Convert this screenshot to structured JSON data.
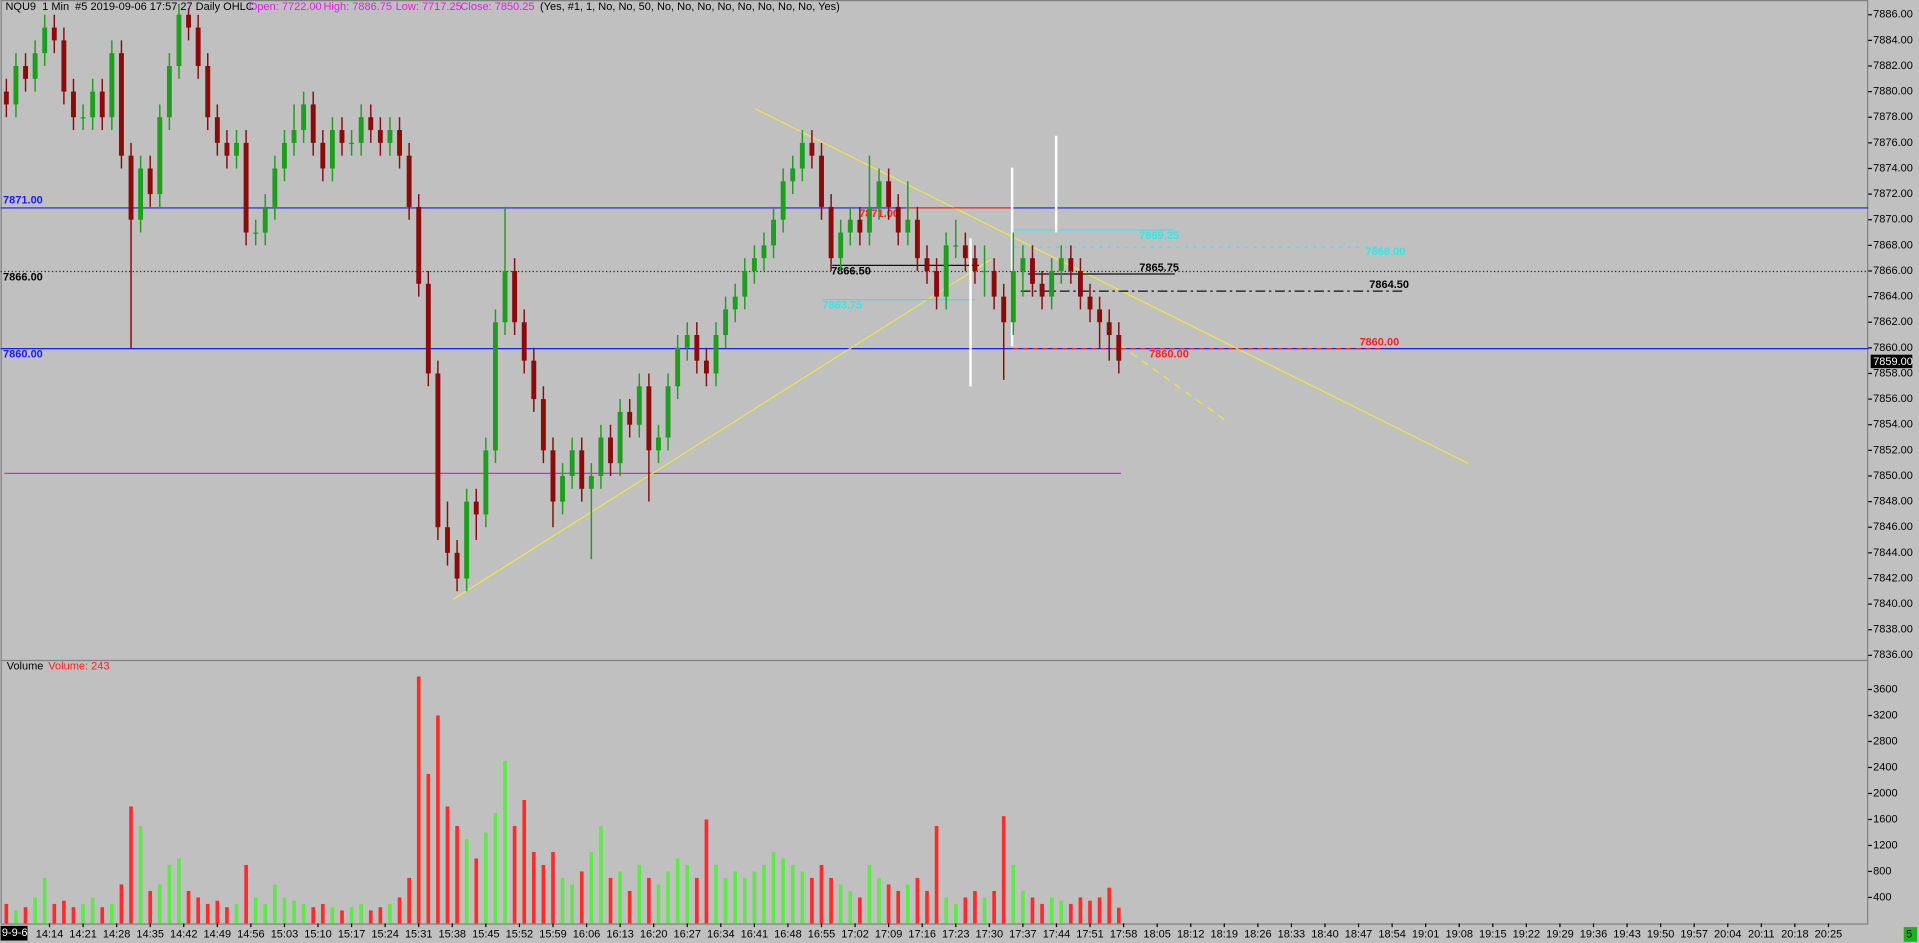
{
  "chart_data": {
    "type": "candlestick",
    "title": "NQU9  1 Min  #5 2019-09-06 17:57:27 Daily OHLC",
    "open_label": "Open: 7722.00",
    "high_label": "High: 7886.75",
    "low_label": "Low: 7717.25",
    "close_label": "Close: 7850.25",
    "params": "(Yes, #1, 1, No, No, 50, No, No, No, No, No, No, No, No, Yes)",
    "volume_title": "Volume",
    "volume_label": "Volume: 243",
    "date_box": "9-9-6",
    "corner_box": "5",
    "last_price": "7859.00",
    "up_color": "#1e9e1e",
    "down_color": "#8b0a0a",
    "vol_up_color": "#5ee84a",
    "vol_down_color": "#ff2a2a",
    "level_labels": [
      "7871.00",
      "7866.00",
      "7860.00"
    ],
    "annotations": [
      "7871.00",
      "7866.50",
      "7865.75",
      "7864.50",
      "7860.00",
      "7860.00",
      "7869.25",
      "7868.00",
      "7863.75"
    ],
    "xlim": [
      843.8,
      1233.3
    ],
    "ylim": [
      7835.6,
      7887.15
    ],
    "y2lim": [
      0,
      4047
    ],
    "yticks": [
      {
        "value": 7886,
        "label": "7886.00"
      },
      {
        "value": 7884,
        "label": "7884.00"
      },
      {
        "value": 7882,
        "label": "7882.00"
      },
      {
        "value": 7880,
        "label": "7880.00"
      },
      {
        "value": 7878,
        "label": "7878.00"
      },
      {
        "value": 7876,
        "label": "7876.00"
      },
      {
        "value": 7874,
        "label": "7874.00"
      },
      {
        "value": 7872,
        "label": "7872.00"
      },
      {
        "value": 7870,
        "label": "7870.00"
      },
      {
        "value": 7868,
        "label": "7868.00"
      },
      {
        "value": 7866,
        "label": "7866.00"
      },
      {
        "value": 7864,
        "label": "7864.00"
      },
      {
        "value": 7862,
        "label": "7862.00"
      },
      {
        "value": 7860,
        "label": "7860.00"
      },
      {
        "value": 7858,
        "label": "7858.00"
      },
      {
        "value": 7856,
        "label": "7856.00"
      },
      {
        "value": 7854,
        "label": "7854.00"
      },
      {
        "value": 7852,
        "label": "7852.00"
      },
      {
        "value": 7850,
        "label": "7850.00"
      },
      {
        "value": 7848,
        "label": "7848.00"
      },
      {
        "value": 7846,
        "label": "7846.00"
      },
      {
        "value": 7844,
        "label": "7844.00"
      },
      {
        "value": 7842,
        "label": "7842.00"
      },
      {
        "value": 7840,
        "label": "7840.00"
      },
      {
        "value": 7838,
        "label": "7838.00"
      },
      {
        "value": 7836,
        "label": "7836.00"
      }
    ],
    "y2ticks": [
      3600,
      3200,
      2800,
      2400,
      2000,
      1600,
      1200,
      800,
      400
    ],
    "xticks": [
      {
        "value": 854,
        "label": "14:14"
      },
      {
        "value": 861,
        "label": "14:21"
      },
      {
        "value": 868,
        "label": "14:28"
      },
      {
        "value": 875,
        "label": "14:35"
      },
      {
        "value": 882,
        "label": "14:42"
      },
      {
        "value": 889,
        "label": "14:49"
      },
      {
        "value": 896,
        "label": "14:56"
      },
      {
        "value": 903,
        "label": "15:03"
      },
      {
        "value": 910,
        "label": "15:10"
      },
      {
        "value": 917,
        "label": "15:17"
      },
      {
        "value": 924,
        "label": "15:24"
      },
      {
        "value": 931,
        "label": "15:31"
      },
      {
        "value": 938,
        "label": "15:38"
      },
      {
        "value": 945,
        "label": "15:45"
      },
      {
        "value": 952,
        "label": "15:52"
      },
      {
        "value": 959,
        "label": "15:59"
      },
      {
        "value": 966,
        "label": "16:06"
      },
      {
        "value": 973,
        "label": "16:13"
      },
      {
        "value": 980,
        "label": "16:20"
      },
      {
        "value": 987,
        "label": "16:27"
      },
      {
        "value": 994,
        "label": "16:34"
      },
      {
        "value": 1001,
        "label": "16:41"
      },
      {
        "value": 1008,
        "label": "16:48"
      },
      {
        "value": 1015,
        "label": "16:55"
      },
      {
        "value": 1022,
        "label": "17:02"
      },
      {
        "value": 1029,
        "label": "17:09"
      },
      {
        "value": 1036,
        "label": "17:16"
      },
      {
        "value": 1043,
        "label": "17:23"
      },
      {
        "value": 1050,
        "label": "17:30"
      },
      {
        "value": 1057,
        "label": "17:37"
      },
      {
        "value": 1064,
        "label": "17:44"
      },
      {
        "value": 1071,
        "label": "17:51"
      },
      {
        "value": 1078,
        "label": "17:58"
      },
      {
        "value": 1085,
        "label": "18:05"
      },
      {
        "value": 1092,
        "label": "18:12"
      },
      {
        "value": 1099,
        "label": "18:19"
      },
      {
        "value": 1106,
        "label": "18:26"
      },
      {
        "value": 1113,
        "label": "18:33"
      },
      {
        "value": 1120,
        "label": "18:40"
      },
      {
        "value": 1127,
        "label": "18:47"
      },
      {
        "value": 1134,
        "label": "18:54"
      },
      {
        "value": 1141,
        "label": "19:01"
      },
      {
        "value": 1148,
        "label": "19:08"
      },
      {
        "value": 1155,
        "label": "19:15"
      },
      {
        "value": 1162,
        "label": "19:22"
      },
      {
        "value": 1169,
        "label": "19:29"
      },
      {
        "value": 1176,
        "label": "19:36"
      },
      {
        "value": 1183,
        "label": "19:43"
      },
      {
        "value": 1190,
        "label": "19:50"
      },
      {
        "value": 1197,
        "label": "19:57"
      },
      {
        "value": 1204,
        "label": "20:04"
      },
      {
        "value": 1211,
        "label": "20:11"
      },
      {
        "value": 1218,
        "label": "20:18"
      },
      {
        "value": 1225,
        "label": "20:25"
      }
    ],
    "candles": [
      [
        845,
        7880,
        7881,
        7878,
        7879,
        300
      ],
      [
        847,
        7879,
        7883,
        7878,
        7882,
        200
      ],
      [
        849,
        7882,
        7883,
        7880,
        7881,
        250
      ],
      [
        851,
        7881,
        7884,
        7880,
        7883,
        400
      ],
      [
        853,
        7883,
        7886,
        7882,
        7885,
        700
      ],
      [
        855,
        7885,
        7886,
        7883,
        7884,
        300
      ],
      [
        857,
        7884,
        7885,
        7879,
        7880,
        350
      ],
      [
        859,
        7880,
        7881,
        7877,
        7878,
        250
      ],
      [
        861,
        7878,
        7879,
        7877,
        7878,
        300
      ],
      [
        863,
        7878,
        7881,
        7877,
        7880,
        400
      ],
      [
        865,
        7880,
        7881,
        7877,
        7878,
        250
      ],
      [
        867,
        7878,
        7884,
        7877,
        7883,
        300
      ],
      [
        869,
        7883,
        7884,
        7874,
        7875,
        600
      ],
      [
        871,
        7875,
        7876,
        7860,
        7870,
        1800
      ],
      [
        873,
        7870,
        7875,
        7869,
        7874,
        1500
      ],
      [
        875,
        7874,
        7875,
        7871,
        7872,
        500
      ],
      [
        877,
        7872,
        7879,
        7871,
        7878,
        600
      ],
      [
        879,
        7878,
        7883,
        7877,
        7882,
        900
      ],
      [
        881,
        7882,
        7886.75,
        7881,
        7886,
        1000
      ],
      [
        883,
        7886,
        7886.5,
        7884,
        7885,
        500
      ],
      [
        885,
        7885,
        7886,
        7881,
        7882,
        400
      ],
      [
        887,
        7882,
        7883,
        7877,
        7878,
        300
      ],
      [
        889,
        7878,
        7879,
        7875,
        7876,
        350
      ],
      [
        891,
        7876,
        7877,
        7874,
        7875,
        250
      ],
      [
        893,
        7875,
        7877,
        7874,
        7876,
        300
      ],
      [
        895,
        7876,
        7877,
        7868,
        7869,
        900
      ],
      [
        897,
        7869,
        7870,
        7868,
        7869,
        400
      ],
      [
        899,
        7869,
        7872,
        7868,
        7871,
        300
      ],
      [
        901,
        7871,
        7875,
        7870,
        7874,
        600
      ],
      [
        903,
        7874,
        7877,
        7873,
        7876,
        400
      ],
      [
        905,
        7876,
        7879,
        7875,
        7877,
        350
      ],
      [
        907,
        7877,
        7880,
        7876,
        7879,
        300
      ],
      [
        909,
        7879,
        7880,
        7875,
        7876,
        250
      ],
      [
        911,
        7876,
        7877,
        7873,
        7874,
        300
      ],
      [
        913,
        7874,
        7878,
        7873,
        7877,
        250
      ],
      [
        915,
        7877,
        7878,
        7875,
        7876,
        200
      ],
      [
        917,
        7876,
        7877,
        7875,
        7876,
        250
      ],
      [
        919,
        7876,
        7879,
        7875,
        7878,
        300
      ],
      [
        921,
        7878,
        7879,
        7876,
        7877,
        200
      ],
      [
        923,
        7877,
        7878,
        7875,
        7876,
        250
      ],
      [
        925,
        7876,
        7878,
        7875,
        7877,
        300
      ],
      [
        927,
        7877,
        7878,
        7874,
        7875,
        400
      ],
      [
        929,
        7875,
        7876,
        7870,
        7871,
        700
      ],
      [
        931,
        7871,
        7872,
        7864,
        7865,
        3800
      ],
      [
        933,
        7865,
        7866,
        7857,
        7858,
        2300
      ],
      [
        935,
        7858,
        7859,
        7845,
        7846,
        3200
      ],
      [
        937,
        7846,
        7848,
        7843,
        7844,
        1800
      ],
      [
        939,
        7844,
        7845,
        7841,
        7842,
        1500
      ],
      [
        941,
        7842,
        7849,
        7841,
        7848,
        1300
      ],
      [
        943,
        7848,
        7849,
        7845,
        7847,
        1000
      ],
      [
        945,
        7847,
        7853,
        7846,
        7852,
        1400
      ],
      [
        947,
        7852,
        7863,
        7851,
        7862,
        1700
      ],
      [
        949,
        7862,
        7871,
        7861,
        7866,
        2500
      ],
      [
        951,
        7866,
        7867,
        7861,
        7862,
        1500
      ],
      [
        953,
        7862,
        7863,
        7858,
        7859,
        1900
      ],
      [
        955,
        7859,
        7860,
        7855,
        7856,
        1100
      ],
      [
        957,
        7856,
        7857,
        7851,
        7852,
        900
      ],
      [
        959,
        7852,
        7853,
        7846,
        7848,
        1100
      ],
      [
        961,
        7848,
        7851,
        7847,
        7850,
        700
      ],
      [
        963,
        7850,
        7853,
        7849,
        7852,
        600
      ],
      [
        965,
        7852,
        7853,
        7848,
        7849,
        800
      ],
      [
        967,
        7849,
        7851,
        7843.5,
        7850,
        1100
      ],
      [
        969,
        7850,
        7854,
        7849,
        7853,
        1500
      ],
      [
        971,
        7853,
        7854,
        7850,
        7851,
        700
      ],
      [
        973,
        7851,
        7856,
        7850,
        7855,
        800
      ],
      [
        975,
        7855,
        7856,
        7853,
        7854,
        500
      ],
      [
        977,
        7854,
        7858,
        7853,
        7857,
        900
      ],
      [
        979,
        7857,
        7858,
        7848,
        7852,
        700
      ],
      [
        981,
        7852,
        7854,
        7851,
        7853,
        600
      ],
      [
        983,
        7853,
        7858,
        7852,
        7857,
        800
      ],
      [
        985,
        7857,
        7861,
        7856,
        7860,
        1000
      ],
      [
        987,
        7860,
        7862,
        7859,
        7861,
        900
      ],
      [
        989,
        7861,
        7862,
        7858,
        7859,
        700
      ],
      [
        991,
        7859,
        7860,
        7857,
        7858,
        1600
      ],
      [
        993,
        7858,
        7862,
        7857,
        7861,
        900
      ],
      [
        995,
        7861,
        7864,
        7860,
        7863,
        700
      ],
      [
        997,
        7863,
        7865,
        7862,
        7864,
        800
      ],
      [
        999,
        7864,
        7867,
        7863,
        7866,
        700
      ],
      [
        1001,
        7866,
        7868,
        7865,
        7867,
        800
      ],
      [
        1003,
        7867,
        7869,
        7866,
        7868,
        900
      ],
      [
        1005,
        7868,
        7871,
        7867,
        7870,
        1100
      ],
      [
        1007,
        7870,
        7874,
        7869,
        7873,
        1000
      ],
      [
        1009,
        7873,
        7875,
        7872,
        7874,
        900
      ],
      [
        1011,
        7874,
        7877,
        7873,
        7876,
        800
      ],
      [
        1013,
        7876,
        7877,
        7874,
        7875,
        700
      ],
      [
        1015,
        7875,
        7876,
        7870,
        7871,
        900
      ],
      [
        1017,
        7871,
        7872,
        7866,
        7867,
        700
      ],
      [
        1019,
        7867,
        7870,
        7866,
        7869,
        600
      ],
      [
        1021,
        7869,
        7871,
        7868,
        7870,
        500
      ],
      [
        1023,
        7870,
        7871,
        7868,
        7869,
        400
      ],
      [
        1025,
        7869,
        7875,
        7868,
        7871,
        900
      ],
      [
        1027,
        7871,
        7874,
        7870,
        7873,
        700
      ],
      [
        1029,
        7873,
        7874,
        7870,
        7871,
        600
      ],
      [
        1031,
        7871,
        7872,
        7868,
        7869,
        500
      ],
      [
        1033,
        7869,
        7873,
        7868,
        7870,
        600
      ],
      [
        1035,
        7870,
        7871,
        7866,
        7867,
        700
      ],
      [
        1037,
        7867,
        7868,
        7865,
        7866,
        500
      ],
      [
        1039,
        7866,
        7867,
        7863,
        7864,
        1500
      ],
      [
        1041,
        7864,
        7869,
        7863,
        7868,
        400
      ],
      [
        1043,
        7868,
        7870,
        7867,
        7868,
        300
      ],
      [
        1045,
        7868,
        7869,
        7866,
        7867,
        400
      ],
      [
        1047,
        7867,
        7868,
        7865,
        7866,
        500
      ],
      [
        1049,
        7866,
        7868,
        7864,
        7866,
        400
      ],
      [
        1051,
        7866,
        7867,
        7863,
        7864,
        500
      ],
      [
        1053,
        7864,
        7865,
        7857.5,
        7862,
        1650
      ],
      [
        1055,
        7862,
        7869,
        7861,
        7866,
        900
      ],
      [
        1057,
        7866,
        7868,
        7864,
        7867,
        500
      ],
      [
        1059,
        7867,
        7868,
        7864,
        7865,
        400
      ],
      [
        1061,
        7865,
        7866,
        7863,
        7864,
        300
      ],
      [
        1063,
        7864,
        7867,
        7863,
        7866,
        400
      ],
      [
        1065,
        7866,
        7868,
        7865,
        7867,
        350
      ],
      [
        1067,
        7867,
        7868,
        7865,
        7866,
        300
      ],
      [
        1069,
        7866,
        7867,
        7863,
        7864,
        400
      ],
      [
        1071,
        7864,
        7865,
        7862,
        7863,
        350
      ],
      [
        1073,
        7863,
        7864,
        7860,
        7862,
        400
      ],
      [
        1075,
        7862,
        7863,
        7859,
        7861,
        550
      ],
      [
        1077,
        7861,
        7862,
        7858,
        7859,
        243
      ]
    ]
  }
}
